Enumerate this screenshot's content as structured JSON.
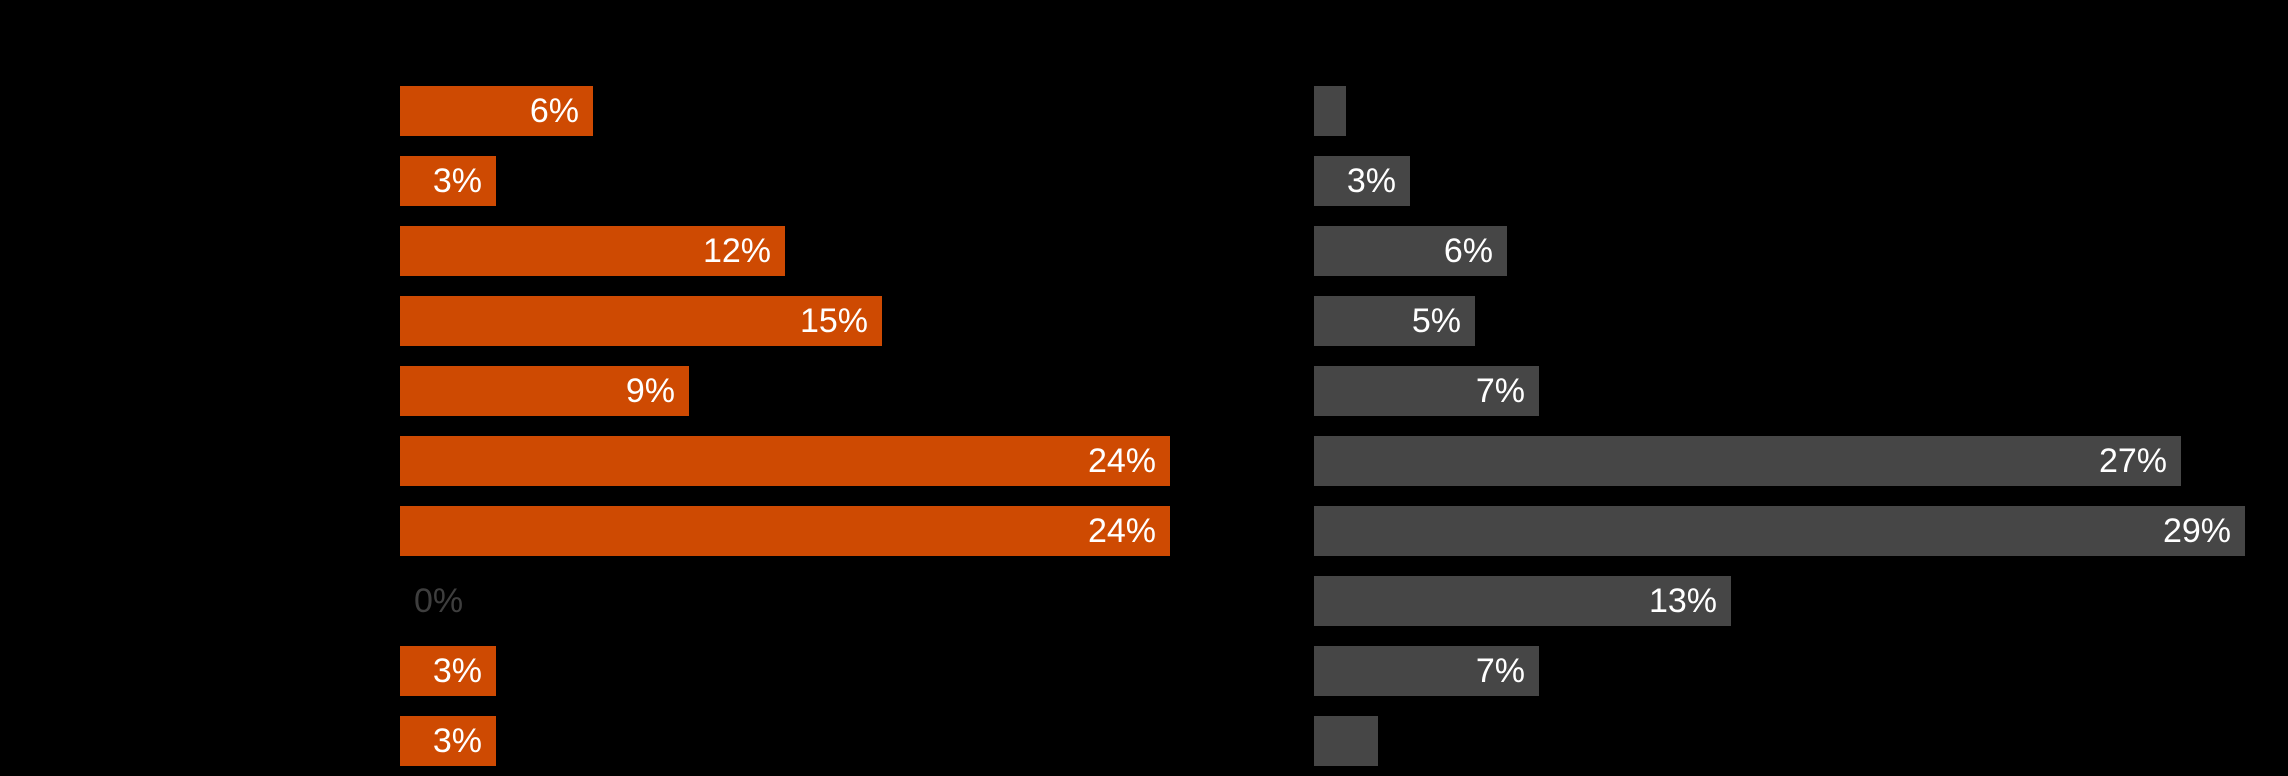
{
  "page": {
    "background_color": "#000000",
    "title_visible": false,
    "category_labels_visible": false
  },
  "chart_data": [
    {
      "type": "bar",
      "orientation": "horizontal",
      "name": "left-orange-series",
      "bar_color": "#CE4A02",
      "label_color": "#FFFFFF",
      "zero_label_color": "#3E3E3E",
      "values": [
        6,
        3,
        12,
        15,
        9,
        24,
        24,
        0,
        3,
        3
      ],
      "labels": [
        "6%",
        "3%",
        "12%",
        "15%",
        "9%",
        "24%",
        "24%",
        "0%",
        "3%",
        "3%"
      ],
      "data_label_position": "inside-end",
      "xlim": [
        0,
        30
      ],
      "axis_visible": false,
      "gridlines": false,
      "legend": null,
      "title": ""
    },
    {
      "type": "bar",
      "orientation": "horizontal",
      "name": "right-gray-series",
      "bar_color": "#464646",
      "label_color": "#FFFFFF",
      "values": [
        1,
        3,
        6,
        5,
        7,
        27,
        29,
        13,
        7,
        2
      ],
      "labels": [
        "",
        "3%",
        "6%",
        "5%",
        "7%",
        "27%",
        "29%",
        "13%",
        "7%",
        ""
      ],
      "data_label_position": "inside-end",
      "xlim": [
        0,
        30
      ],
      "axis_visible": false,
      "gridlines": false,
      "legend": null,
      "title": ""
    }
  ]
}
